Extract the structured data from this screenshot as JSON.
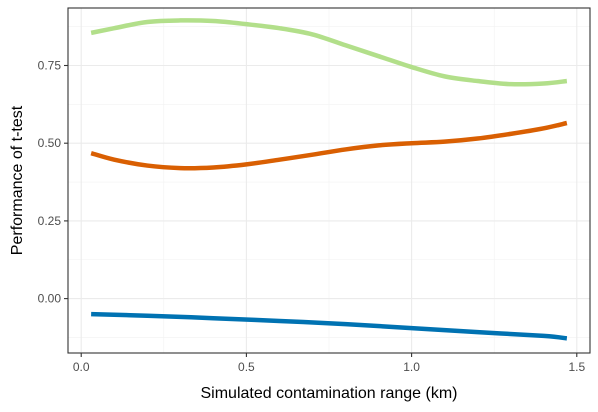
{
  "chart_data": {
    "type": "line",
    "title": "",
    "xlabel": "Simulated contamination range (km)",
    "ylabel": "Performance of t-test",
    "xlim": [
      -0.04,
      1.54
    ],
    "ylim": [
      -0.175,
      0.935
    ],
    "x_ticks": [
      0.0,
      0.5,
      1.0,
      1.5
    ],
    "x_tick_labels": [
      "0.0",
      "0.5",
      "1.0",
      "1.5"
    ],
    "y_ticks": [
      0.0,
      0.25,
      0.5,
      0.75
    ],
    "y_tick_labels": [
      "0.00",
      "0.25",
      "0.50",
      "0.75"
    ],
    "grid": true,
    "series": [
      {
        "color": "#b2df8a",
        "x": [
          0.03,
          0.1,
          0.2,
          0.3,
          0.4,
          0.5,
          0.6,
          0.7,
          0.8,
          0.9,
          1.0,
          1.1,
          1.2,
          1.3,
          1.4,
          1.47
        ],
        "y": [
          0.855,
          0.87,
          0.89,
          0.895,
          0.893,
          0.883,
          0.87,
          0.85,
          0.815,
          0.78,
          0.745,
          0.715,
          0.7,
          0.69,
          0.692,
          0.7
        ]
      },
      {
        "color": "#d95f02",
        "x": [
          0.03,
          0.1,
          0.2,
          0.3,
          0.4,
          0.5,
          0.6,
          0.7,
          0.8,
          0.9,
          1.0,
          1.1,
          1.2,
          1.3,
          1.4,
          1.47
        ],
        "y": [
          0.468,
          0.447,
          0.428,
          0.42,
          0.422,
          0.432,
          0.447,
          0.463,
          0.48,
          0.493,
          0.5,
          0.505,
          0.515,
          0.53,
          0.548,
          0.565
        ]
      },
      {
        "color": "#0072b2",
        "x": [
          0.03,
          0.2,
          0.4,
          0.6,
          0.8,
          1.0,
          1.2,
          1.4,
          1.47
        ],
        "y": [
          -0.05,
          -0.055,
          -0.063,
          -0.072,
          -0.082,
          -0.095,
          -0.108,
          -0.12,
          -0.128
        ]
      }
    ]
  }
}
